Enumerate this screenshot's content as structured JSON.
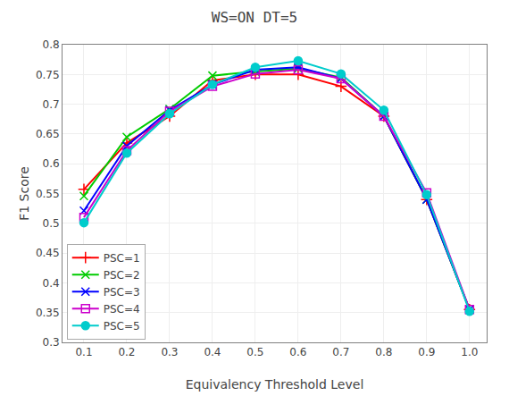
{
  "chart_data": {
    "type": "line",
    "title": "WS=ON DT=5",
    "x_label": "Equivalency Threshold Level",
    "y_label": "F1 Score",
    "x": [
      0.1,
      0.2,
      0.3,
      0.4,
      0.5,
      0.6,
      0.7,
      0.8,
      0.9,
      1.0
    ],
    "xlim": [
      0.05,
      1.04
    ],
    "xticks": [
      0.1,
      0.2,
      0.3,
      0.4,
      0.5,
      0.6,
      0.7,
      0.8,
      0.9,
      {
        "value": 1.0,
        "label": "1.0"
      }
    ],
    "ylim": [
      0.3,
      0.8
    ],
    "yticks": [
      0.3,
      0.35,
      0.4,
      0.45,
      0.5,
      0.55,
      0.6,
      0.65,
      0.7,
      0.75,
      0.8
    ],
    "grid": true,
    "legend": "lower left",
    "series": [
      {
        "name": "PSC=1",
        "color": "#ff0000",
        "marker": "plus",
        "values": [
          0.557,
          0.635,
          0.68,
          0.74,
          0.75,
          0.75,
          0.73,
          0.68,
          0.54,
          0.355
        ]
      },
      {
        "name": "PSC=2",
        "color": "#00cc00",
        "marker": "x",
        "values": [
          0.546,
          0.645,
          0.692,
          0.748,
          0.755,
          0.76,
          0.745,
          0.68,
          0.54,
          0.355
        ]
      },
      {
        "name": "PSC=3",
        "color": "#0000ff",
        "marker": "x",
        "values": [
          0.521,
          0.63,
          0.69,
          0.733,
          0.758,
          0.762,
          0.743,
          0.68,
          0.54,
          0.355
        ]
      },
      {
        "name": "PSC=4",
        "color": "#cc00cc",
        "marker": "square-open",
        "values": [
          0.51,
          0.622,
          0.688,
          0.73,
          0.751,
          0.758,
          0.743,
          0.68,
          0.551,
          0.355
        ]
      },
      {
        "name": "PSC=5",
        "color": "#00cccc",
        "marker": "circle",
        "values": [
          0.501,
          0.618,
          0.684,
          0.733,
          0.762,
          0.773,
          0.751,
          0.69,
          0.548,
          0.352
        ]
      }
    ]
  }
}
